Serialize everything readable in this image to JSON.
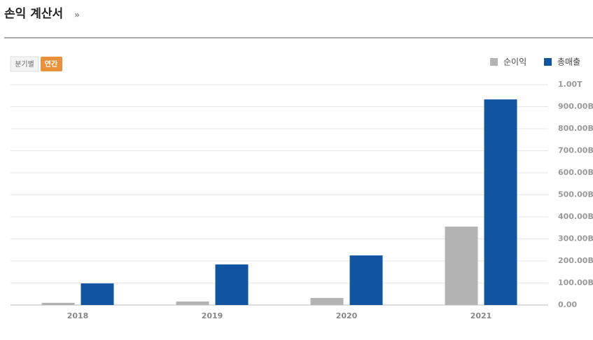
{
  "header": {
    "title": "손익 계산서",
    "more": "»"
  },
  "controls": [
    "분기별",
    "연간"
  ],
  "chart_data": {
    "type": "bar",
    "categories": [
      "2018",
      "2019",
      "2020",
      "2021"
    ],
    "series": [
      {
        "name": "순이익",
        "color": "#b3b3b3",
        "values": [
          10000000000,
          16000000000,
          32000000000,
          356000000000
        ]
      },
      {
        "name": "총매출",
        "color": "#1155a0",
        "values": [
          98000000000,
          184000000000,
          225000000000,
          933000000000
        ]
      }
    ],
    "ylim": [
      0,
      1000000000000
    ],
    "yticks": [
      {
        "value": 0,
        "label": "0.00"
      },
      {
        "value": 100000000000,
        "label": "100.00B"
      },
      {
        "value": 200000000000,
        "label": "200.00B"
      },
      {
        "value": 300000000000,
        "label": "300.00B"
      },
      {
        "value": 400000000000,
        "label": "400.00B"
      },
      {
        "value": 500000000000,
        "label": "500.00B"
      },
      {
        "value": 600000000000,
        "label": "600.00B"
      },
      {
        "value": 700000000000,
        "label": "700.00B"
      },
      {
        "value": 800000000000,
        "label": "800.00B"
      },
      {
        "value": 900000000000,
        "label": "900.00B"
      },
      {
        "value": 1000000000000,
        "label": "1.00T"
      }
    ],
    "grid": true,
    "legend": "top-right"
  }
}
